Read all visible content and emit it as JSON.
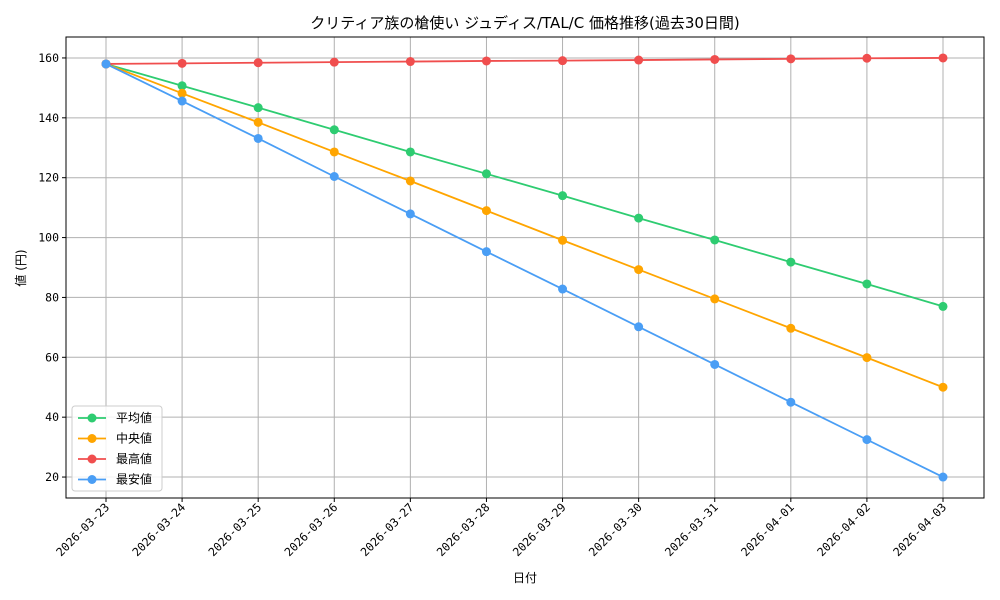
{
  "chart_data": {
    "type": "line",
    "title": "クリティア族の槍使い ジュディス/TAL/C 価格推移(過去30日間)",
    "xlabel": "日付",
    "ylabel": "値 (円)",
    "ylim": [
      13,
      167
    ],
    "yticks": [
      20,
      40,
      60,
      80,
      100,
      120,
      140,
      160
    ],
    "grid": true,
    "legend_position": "lower-left",
    "categories": [
      "2026-03-23",
      "2026-03-24",
      "2026-03-25",
      "2026-03-26",
      "2026-03-27",
      "2026-03-28",
      "2026-03-29",
      "2026-03-30",
      "2026-03-31",
      "2026-04-01",
      "2026-04-02",
      "2026-04-03"
    ],
    "series": [
      {
        "name": "平均値",
        "color": "#2ecc71",
        "values": [
          158,
          150.7,
          143.4,
          136.0,
          128.6,
          121.3,
          114.0,
          106.5,
          99.2,
          91.8,
          84.5,
          77.0
        ]
      },
      {
        "name": "中央値",
        "color": "#ffa500",
        "values": [
          158,
          148.2,
          138.5,
          128.6,
          118.9,
          109.0,
          99.1,
          89.3,
          79.5,
          69.7,
          59.9,
          50.0
        ]
      },
      {
        "name": "最高値",
        "color": "#f04e4e",
        "values": [
          158,
          158.2,
          158.4,
          158.6,
          158.8,
          159.0,
          159.1,
          159.3,
          159.5,
          159.7,
          159.9,
          160.0
        ]
      },
      {
        "name": "最安値",
        "color": "#4a9ef5",
        "values": [
          158,
          145.6,
          133.1,
          120.4,
          107.9,
          95.3,
          82.8,
          70.2,
          57.6,
          45.0,
          32.5,
          20.0
        ]
      }
    ]
  }
}
